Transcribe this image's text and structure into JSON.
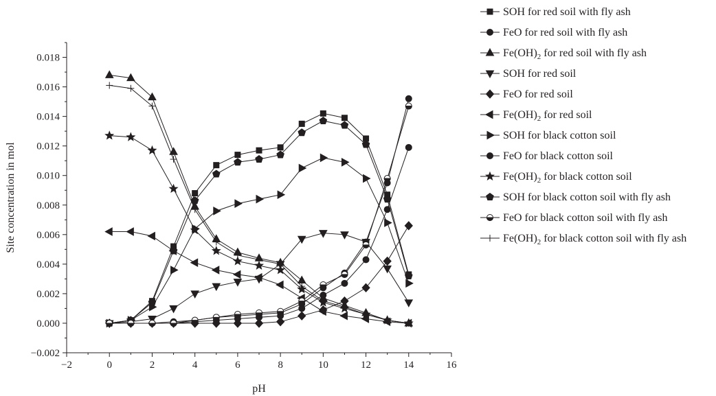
{
  "chart_data": {
    "type": "line",
    "xlabel": "pH",
    "ylabel": "Site concentration in mol",
    "xlim": [
      -2,
      16
    ],
    "ylim": [
      -0.002,
      0.019
    ],
    "xticks": [
      -2,
      0,
      2,
      4,
      6,
      8,
      10,
      12,
      14,
      16
    ],
    "yticks": [
      -0.002,
      0.0,
      0.002,
      0.004,
      0.006,
      0.008,
      0.01,
      0.012,
      0.014,
      0.016,
      0.018
    ],
    "xtick_labels": [
      "−2",
      "0",
      "2",
      "4",
      "6",
      "8",
      "10",
      "12",
      "14",
      "16"
    ],
    "ytick_labels": [
      "−0.002",
      "0.000",
      "0.002",
      "0.004",
      "0.006",
      "0.008",
      "0.010",
      "0.012",
      "0.014",
      "0.016",
      "0.018"
    ],
    "legend_position": "top-right, outside plot",
    "x": [
      0,
      1,
      2,
      3,
      4,
      5,
      6,
      7,
      8,
      9,
      10,
      11,
      12,
      13,
      14
    ],
    "series": [
      {
        "name": "SOH for red soil with fly ash",
        "name_main": "SOH for red soil with fly ash",
        "name_sub": "",
        "name_tail": "",
        "marker": "square",
        "values": [
          0.0,
          0.0002,
          0.0015,
          0.0052,
          0.0088,
          0.0107,
          0.0114,
          0.0117,
          0.0119,
          0.0135,
          0.0142,
          0.0139,
          0.0125,
          0.0087,
          0.0033
        ]
      },
      {
        "name": "FeO for red soil with fly ash",
        "name_main": "FeO for red soil with fly ash",
        "name_sub": "",
        "name_tail": "",
        "marker": "circle",
        "values": [
          0.0,
          0.0,
          0.0,
          0.0001,
          0.0002,
          0.0004,
          0.0005,
          0.0006,
          0.0007,
          0.0013,
          0.0024,
          0.0034,
          0.0055,
          0.0095,
          0.0152
        ]
      },
      {
        "name": "Fe(OH)2 for red soil with fly ash",
        "name_main": "Fe(OH)",
        "name_sub": "2",
        "name_tail": " for red soil with fly ash",
        "marker": "triangle-up",
        "values": [
          0.0168,
          0.0166,
          0.0153,
          0.0116,
          0.0079,
          0.0057,
          0.0048,
          0.0044,
          0.0041,
          0.0029,
          0.0017,
          0.0012,
          0.0007,
          0.0002,
          0.0
        ]
      },
      {
        "name": "SOH for red soil",
        "name_main": "SOH for red soil",
        "name_sub": "",
        "name_tail": "",
        "marker": "triangle-down",
        "values": [
          0.0,
          0.0001,
          0.0003,
          0.001,
          0.002,
          0.0025,
          0.0028,
          0.003,
          0.004,
          0.0057,
          0.0061,
          0.006,
          0.0055,
          0.0037,
          0.0014
        ]
      },
      {
        "name": "FeO for red soil",
        "name_main": "FeO for red soil",
        "name_sub": "",
        "name_tail": "",
        "marker": "diamond",
        "values": [
          0.0,
          0.0,
          0.0,
          0.0,
          0.0,
          0.0,
          0.0,
          0.0,
          0.0001,
          0.0005,
          0.0009,
          0.0015,
          0.0024,
          0.0042,
          0.0066
        ]
      },
      {
        "name": "Fe(OH)2 for red soil",
        "name_main": "Fe(OH)",
        "name_sub": "2",
        "name_tail": " for red soil",
        "marker": "triangle-left",
        "values": [
          0.0062,
          0.0062,
          0.0059,
          0.0049,
          0.0041,
          0.0036,
          0.0033,
          0.0031,
          0.0026,
          0.0017,
          0.0008,
          0.0005,
          0.0003,
          0.0001,
          0.0
        ]
      },
      {
        "name": "SOH for black cotton soil",
        "name_main": "SOH for black cotton soil",
        "name_sub": "",
        "name_tail": "",
        "marker": "triangle-right",
        "values": [
          0.0,
          0.0002,
          0.0011,
          0.0036,
          0.0064,
          0.0076,
          0.0081,
          0.0084,
          0.0087,
          0.0105,
          0.0112,
          0.0109,
          0.0098,
          0.0068,
          0.0027
        ]
      },
      {
        "name": "FeO for black cotton soil",
        "name_main": "FeO for black cotton soil",
        "name_sub": "",
        "name_tail": "",
        "marker": "circle",
        "values": [
          0.0,
          0.0,
          0.0,
          0.0,
          0.0001,
          0.0002,
          0.0003,
          0.0004,
          0.0005,
          0.001,
          0.0019,
          0.0027,
          0.0043,
          0.0077,
          0.0119
        ]
      },
      {
        "name": "Fe(OH)2 for black cotton soil",
        "name_main": "Fe(OH)",
        "name_sub": "2",
        "name_tail": " for black cotton soil",
        "marker": "star",
        "values": [
          0.0127,
          0.0126,
          0.0117,
          0.0091,
          0.0063,
          0.0049,
          0.0042,
          0.0039,
          0.0036,
          0.0023,
          0.0014,
          0.001,
          0.0006,
          0.0002,
          0.0
        ]
      },
      {
        "name": "SOH for black cotton soil with fly ash",
        "name_main": "SOH for black cotton soil with fly ash",
        "name_sub": "",
        "name_tail": "",
        "marker": "pentagon",
        "values": [
          0.0,
          0.0002,
          0.0014,
          0.0049,
          0.0083,
          0.0101,
          0.0109,
          0.0111,
          0.0114,
          0.0129,
          0.0137,
          0.0134,
          0.0121,
          0.0084,
          0.0032
        ]
      },
      {
        "name": "FeO for black cotton soil with fly ash",
        "name_main": "FeO for black cotton soil with fly ash",
        "name_sub": "",
        "name_tail": "",
        "marker": "circle-half",
        "values": [
          0.0,
          0.0,
          0.0,
          0.0,
          0.0002,
          0.0004,
          0.0006,
          0.0007,
          0.0008,
          0.0015,
          0.0026,
          0.0033,
          0.0053,
          0.0098,
          0.0147
        ]
      },
      {
        "name": "Fe(OH)2 for black cotton soil with fly ash",
        "name_main": "Fe(OH)",
        "name_sub": "2",
        "name_tail": " for black cotton soil with fly ash",
        "marker": "plus",
        "values": [
          0.0161,
          0.0159,
          0.0147,
          0.0111,
          0.0077,
          0.0055,
          0.0046,
          0.0043,
          0.004,
          0.0025,
          0.0015,
          0.0011,
          0.0006,
          0.0002,
          0.0
        ]
      }
    ]
  }
}
